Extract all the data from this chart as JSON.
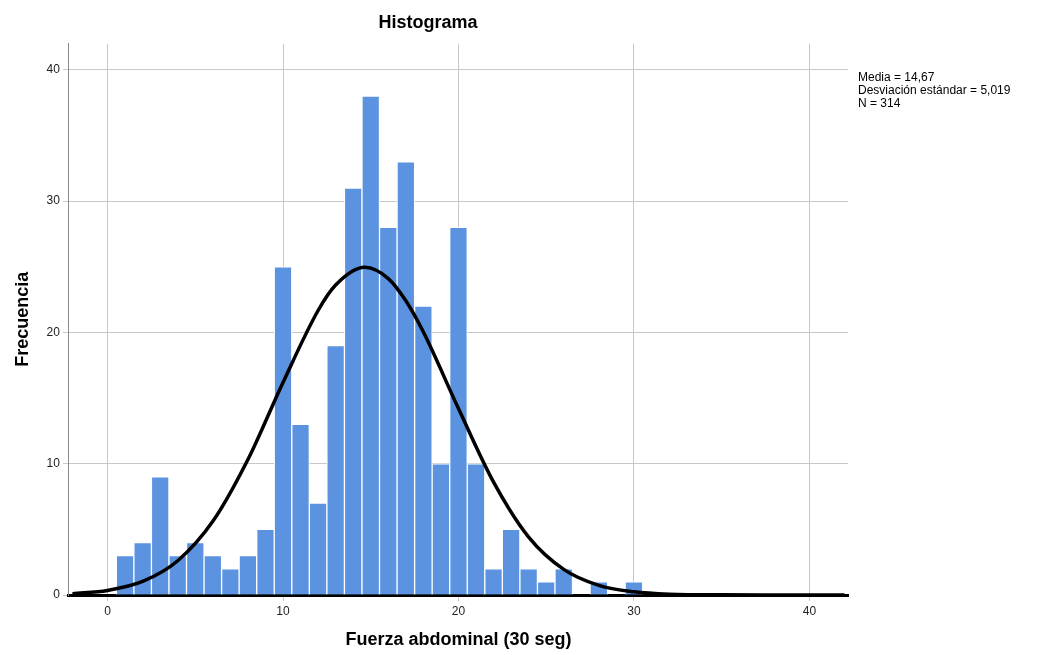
{
  "chart_data": {
    "type": "histogram",
    "title": "Histograma",
    "xlabel": "Fuerza abdominal (30 seg)",
    "ylabel": "Frecuencia",
    "annotations": [
      "Media = 14,67",
      "Desviación estándar = 5,019",
      "N = 314"
    ],
    "bins": [
      0.5,
      1.5,
      2.5,
      3.5,
      4.5,
      5.5,
      6.5,
      7.5,
      8.5,
      9.5,
      10.5,
      11.5,
      12.5,
      13.5,
      14.5,
      15.5,
      16.5,
      17.5,
      18.5,
      19.5,
      20.5,
      21.5,
      22.5,
      23.5,
      24.5,
      25.5,
      26.5,
      27.5,
      28.5,
      29.5,
      30.5
    ],
    "values": [
      3,
      4,
      9,
      3,
      4,
      3,
      2,
      3,
      5,
      25,
      13,
      7,
      19,
      31,
      38,
      28,
      33,
      22,
      10,
      28,
      10,
      2,
      5,
      2,
      1,
      2,
      0,
      1,
      0,
      1
    ],
    "color": "#5b93e0",
    "series": [
      {
        "type": "line",
        "color": "#000000",
        "x": [
          -2,
          0,
          2,
          4,
          6,
          8,
          10,
          12,
          13,
          14.67,
          16,
          17,
          18,
          20,
          22,
          24,
          26,
          28,
          30,
          32,
          35,
          42
        ],
        "values": [
          0.1,
          0.35,
          1.03,
          2.61,
          5.61,
          10.32,
          16.19,
          21.67,
          23.61,
          24.96,
          24.1,
          22.41,
          20.03,
          14.2,
          8.6,
          4.41,
          1.95,
          0.73,
          0.24,
          0.06,
          0.01,
          0
        ]
      }
    ],
    "xlim": [
      -2.2,
      42.2
    ],
    "xticks": [
      0,
      10,
      20,
      30,
      40
    ],
    "ylim": [
      0,
      42
    ],
    "yticks": [
      0,
      10,
      20,
      30,
      40
    ],
    "grid": true,
    "legend": false,
    "marker": "none",
    "line_style": "solid"
  }
}
